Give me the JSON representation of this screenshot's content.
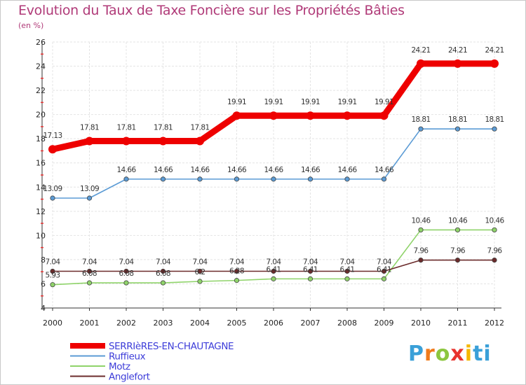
{
  "logo": {
    "text": "Proxiti",
    "l0": "P",
    "l1": "r",
    "l2": "o",
    "l3": "x",
    "l4": "i",
    "l5": "ti"
  },
  "chart_data": {
    "type": "line",
    "title": "Evolution du Taux de Taxe Foncière sur les Propriétés Bâties",
    "ylabel": "(en %)",
    "xlabel": "",
    "ylim": [
      4,
      26
    ],
    "ytick_step": 2,
    "grid": true,
    "legend_position": "bottom-left",
    "x": [
      "2000",
      "2001",
      "2002",
      "2003",
      "2004",
      "2005",
      "2006",
      "2007",
      "2008",
      "2009",
      "2010",
      "2011",
      "2012"
    ],
    "series": [
      {
        "name": "SERRIèRES-EN-CHAUTAGNE",
        "color": "#ee0000",
        "emphasis": true,
        "values": [
          17.13,
          17.81,
          17.81,
          17.81,
          17.81,
          19.91,
          19.91,
          19.91,
          19.91,
          19.91,
          24.21,
          24.21,
          24.21
        ],
        "labels": [
          "17.13",
          "17.81",
          "17.81",
          "17.81",
          "17.81",
          "19.91",
          "19.91",
          "19.91",
          "19.91",
          "19.91",
          "24.21",
          "24.21",
          "24.21"
        ]
      },
      {
        "name": "Ruffieux",
        "color": "#5b9bd5",
        "emphasis": false,
        "values": [
          13.09,
          13.09,
          14.66,
          14.66,
          14.66,
          14.66,
          14.66,
          14.66,
          14.66,
          14.66,
          18.81,
          18.81,
          18.81
        ],
        "labels": [
          "13.09",
          "13.09",
          "14.66",
          "14.66",
          "14.66",
          "14.66",
          "14.66",
          "14.66",
          "14.66",
          "14.66",
          "18.81",
          "18.81",
          "18.81"
        ]
      },
      {
        "name": "Motz",
        "color": "#8fd36a",
        "emphasis": false,
        "values": [
          5.93,
          6.08,
          6.08,
          6.08,
          6.2,
          6.28,
          6.41,
          6.41,
          6.41,
          6.41,
          10.46,
          10.46,
          10.46
        ],
        "labels": [
          "5.93",
          "6.08",
          "6.08",
          "6.08",
          "6.2",
          "6.28",
          "6.41",
          "6.41",
          "6.41",
          "6.41",
          "10.46",
          "10.46",
          "10.46"
        ]
      },
      {
        "name": "Anglefort",
        "color": "#6b2b2b",
        "emphasis": false,
        "values": [
          7.04,
          7.04,
          7.04,
          7.04,
          7.04,
          7.04,
          7.04,
          7.04,
          7.04,
          7.04,
          7.96,
          7.96,
          7.96
        ],
        "labels": [
          "7.04",
          "7.04",
          "7.04",
          "7.04",
          "7.04",
          "7.04",
          "7.04",
          "7.04",
          "7.04",
          "7.04",
          "7.96",
          "7.96",
          "7.96"
        ]
      }
    ]
  }
}
